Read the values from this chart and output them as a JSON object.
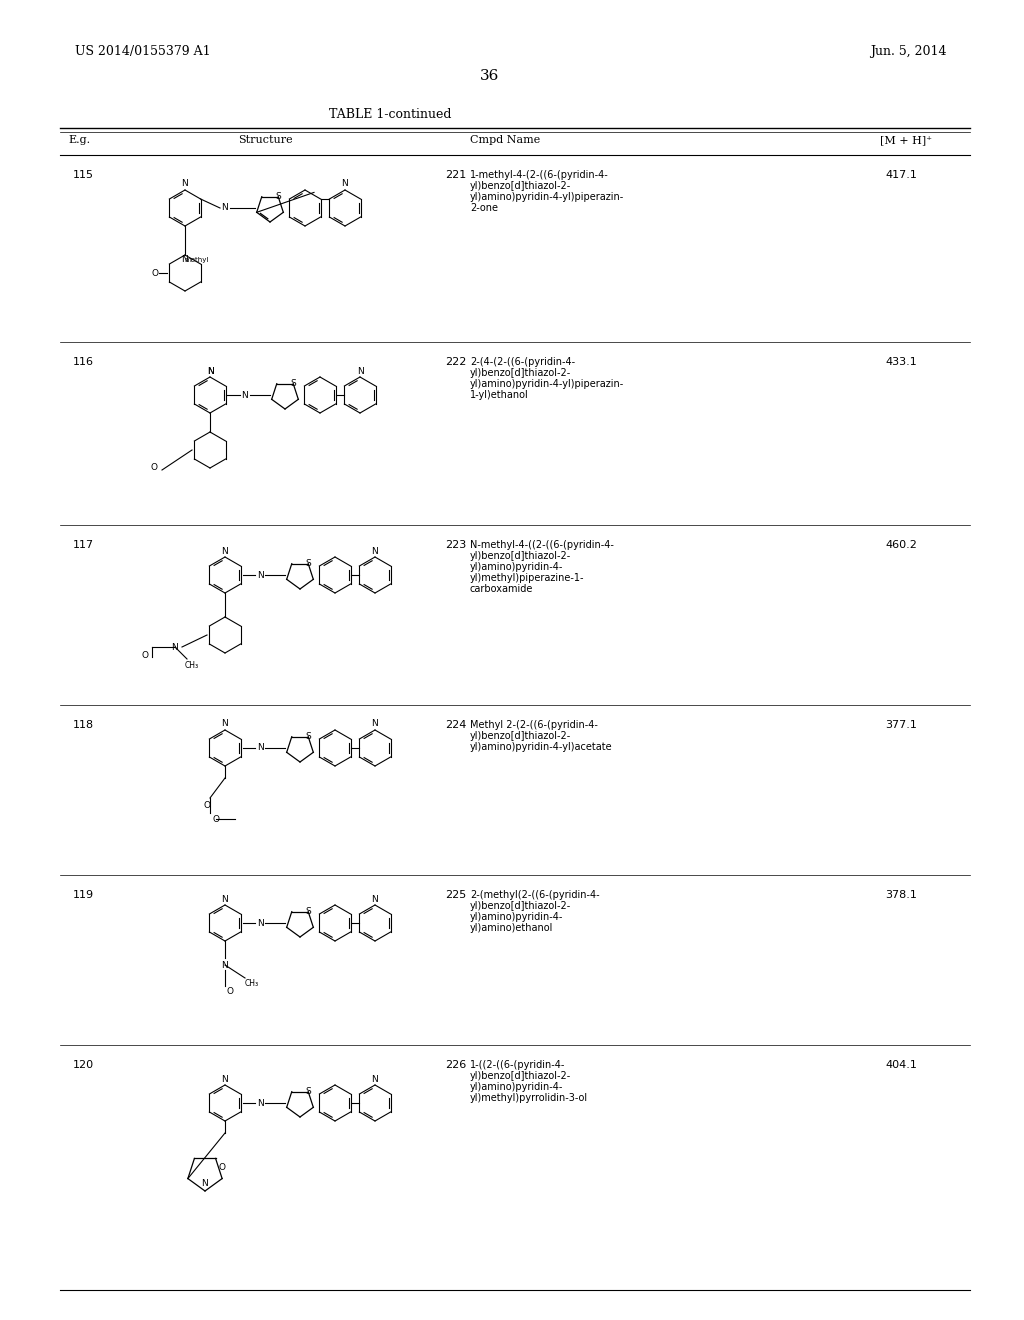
{
  "title_left": "US 2014/0155379 A1",
  "title_right": "Jun. 5, 2014",
  "page_number": "36",
  "table_title": "TABLE 1-continued",
  "headers": [
    "E.g.",
    "Structure",
    "Cmpd Name",
    "[M + H]⁺"
  ],
  "rows": [
    {
      "eg": "115",
      "cmpd_num": "221",
      "cmpd_name": "1-methyl-4-(2-((6-(pyridin-4-\nyl)benzo[d]thiazol-2-\nyl)amino)pyridin-4-yl)piperazin-\n2-one",
      "mh": "417.1"
    },
    {
      "eg": "116",
      "cmpd_num": "222",
      "cmpd_name": "2-(4-(2-((6-(pyridin-4-\nyl)benzo[d]thiazol-2-\nyl)amino)pyridin-4-yl)piperazin-\n1-yl)ethanol",
      "mh": "433.1"
    },
    {
      "eg": "117",
      "cmpd_num": "223",
      "cmpd_name": "N-methyl-4-((2-((6-(pyridin-4-\nyl)benzo[d]thiazol-2-\nyl)amino)pyridin-4-\nyl)methyl)piperazine-1-\ncarboxamide",
      "mh": "460.2"
    },
    {
      "eg": "118",
      "cmpd_num": "224",
      "cmpd_name": "Methyl 2-(2-((6-(pyridin-4-\nyl)benzo[d]thiazol-2-\nyl)amino)pyridin-4-yl)acetate",
      "mh": "377.1"
    },
    {
      "eg": "119",
      "cmpd_num": "225",
      "cmpd_name": "2-(methyl(2-((6-(pyridin-4-\nyl)benzo[d]thiazol-2-\nyl)amino)pyridin-4-\nyl)amino)ethanol",
      "mh": "378.1"
    },
    {
      "eg": "120",
      "cmpd_num": "226",
      "cmpd_name": "1-((2-((6-(pyridin-4-\nyl)benzo[d]thiazol-2-\nyl)amino)pyridin-4-\nyl)methyl)pyrrolidin-3-ol",
      "mh": "404.1"
    }
  ],
  "bg_color": "#ffffff",
  "text_color": "#000000",
  "font_size_header": 8,
  "font_size_body": 7.5,
  "font_size_title": 9,
  "font_size_page": 10
}
